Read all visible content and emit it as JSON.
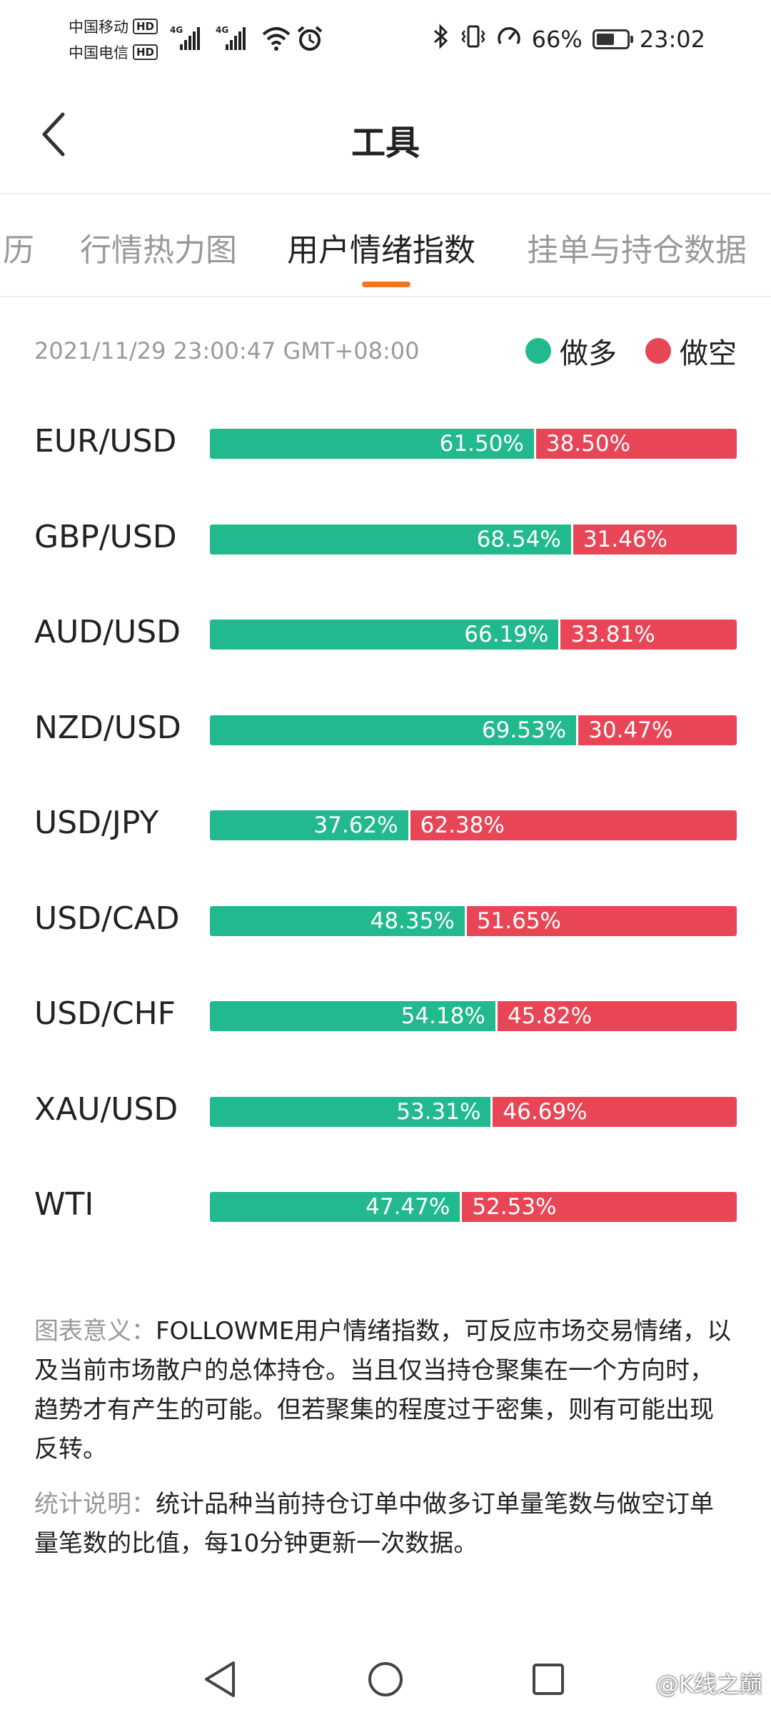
{
  "status_bar": {
    "carrier1": "中国移动",
    "carrier2": "中国电信",
    "hd": "HD",
    "network1": "4G",
    "network2": "4G",
    "battery_text": "66%",
    "battery_level": 0.66,
    "time": "23:02",
    "icons": [
      "bluetooth-icon",
      "vibrate-icon",
      "speed-icon",
      "wifi-icon",
      "alarm-icon"
    ]
  },
  "header": {
    "title": "工具",
    "back_icon": "chevron-left-icon"
  },
  "tabs": [
    {
      "label": "历",
      "active": false
    },
    {
      "label": "行情热力图",
      "active": false
    },
    {
      "label": "用户情绪指数",
      "active": true
    },
    {
      "label": "挂单与持仓数据",
      "active": false
    }
  ],
  "info": {
    "timestamp": "2021/11/29 23:00:47 GMT+08:00",
    "legend_long": "做多",
    "legend_short": "做空"
  },
  "colors": {
    "long": "#22b98e",
    "short": "#e84656",
    "accent": "#f07820"
  },
  "sentiment": [
    {
      "pair": "EUR/USD",
      "long": 61.5,
      "short": 38.5,
      "long_label": "61.50%",
      "short_label": "38.50%"
    },
    {
      "pair": "GBP/USD",
      "long": 68.54,
      "short": 31.46,
      "long_label": "68.54%",
      "short_label": "31.46%"
    },
    {
      "pair": "AUD/USD",
      "long": 66.19,
      "short": 33.81,
      "long_label": "66.19%",
      "short_label": "33.81%"
    },
    {
      "pair": "NZD/USD",
      "long": 69.53,
      "short": 30.47,
      "long_label": "69.53%",
      "short_label": "30.47%"
    },
    {
      "pair": "USD/JPY",
      "long": 37.62,
      "short": 62.38,
      "long_label": "37.62%",
      "short_label": "62.38%"
    },
    {
      "pair": "USD/CAD",
      "long": 48.35,
      "short": 51.65,
      "long_label": "48.35%",
      "short_label": "51.65%"
    },
    {
      "pair": "USD/CHF",
      "long": 54.18,
      "short": 45.82,
      "long_label": "54.18%",
      "short_label": "45.82%"
    },
    {
      "pair": "XAU/USD",
      "long": 53.31,
      "short": 46.69,
      "long_label": "53.31%",
      "short_label": "46.69%"
    },
    {
      "pair": "WTI",
      "long": 47.47,
      "short": 52.53,
      "long_label": "47.47%",
      "short_label": "52.53%"
    }
  ],
  "description": {
    "meaning_label": "图表意义：",
    "meaning_text": "FOLLOWME用户情绪指数，可反应市场交易情绪，以及当前市场散户的总体持仓。当且仅当持仓聚集在一个方向时，趋势才有产生的可能。但若聚集的程度过于密集，则有可能出现反转。",
    "stats_label": "统计说明：",
    "stats_text": "统计品种当前持仓订单中做多订单量笔数与做空订单量笔数的比值，每10分钟更新一次数据。"
  },
  "nav": {
    "back_icon": "triangle-back-icon",
    "home_icon": "circle-home-icon",
    "recents_icon": "square-recents-icon"
  },
  "watermark": "@K线之巅"
}
